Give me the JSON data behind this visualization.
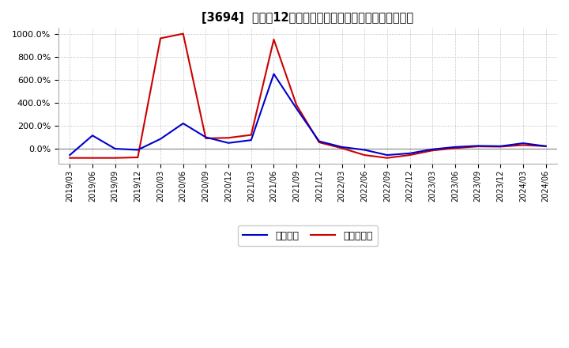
{
  "title": "[3694]  利益の12か月移動合計の対前年同期増減率の推移",
  "legend_labels": [
    "経常利益",
    "当期純利益"
  ],
  "colors": [
    "#0000cc",
    "#cc0000"
  ],
  "background_color": "#ffffff",
  "plot_bg_color": "#ffffff",
  "dates": [
    "2019/03",
    "2019/06",
    "2019/09",
    "2019/12",
    "2020/03",
    "2020/06",
    "2020/09",
    "2020/12",
    "2021/03",
    "2021/06",
    "2021/09",
    "2021/12",
    "2022/03",
    "2022/06",
    "2022/09",
    "2022/12",
    "2023/03",
    "2023/06",
    "2023/09",
    "2023/12",
    "2024/03",
    "2024/06"
  ],
  "operating_profit": [
    -55,
    115,
    0,
    -10,
    85,
    220,
    100,
    50,
    75,
    650,
    350,
    65,
    15,
    -10,
    -55,
    -40,
    -5,
    15,
    25,
    22,
    48,
    22
  ],
  "net_profit": [
    -80,
    -80,
    -80,
    -75,
    960,
    1000,
    90,
    95,
    120,
    950,
    380,
    55,
    5,
    -55,
    -80,
    -55,
    -15,
    5,
    20,
    18,
    32,
    22
  ],
  "ylim_min": -130,
  "ylim_max": 1050,
  "yticks": [
    0,
    200,
    400,
    600,
    800,
    1000
  ]
}
